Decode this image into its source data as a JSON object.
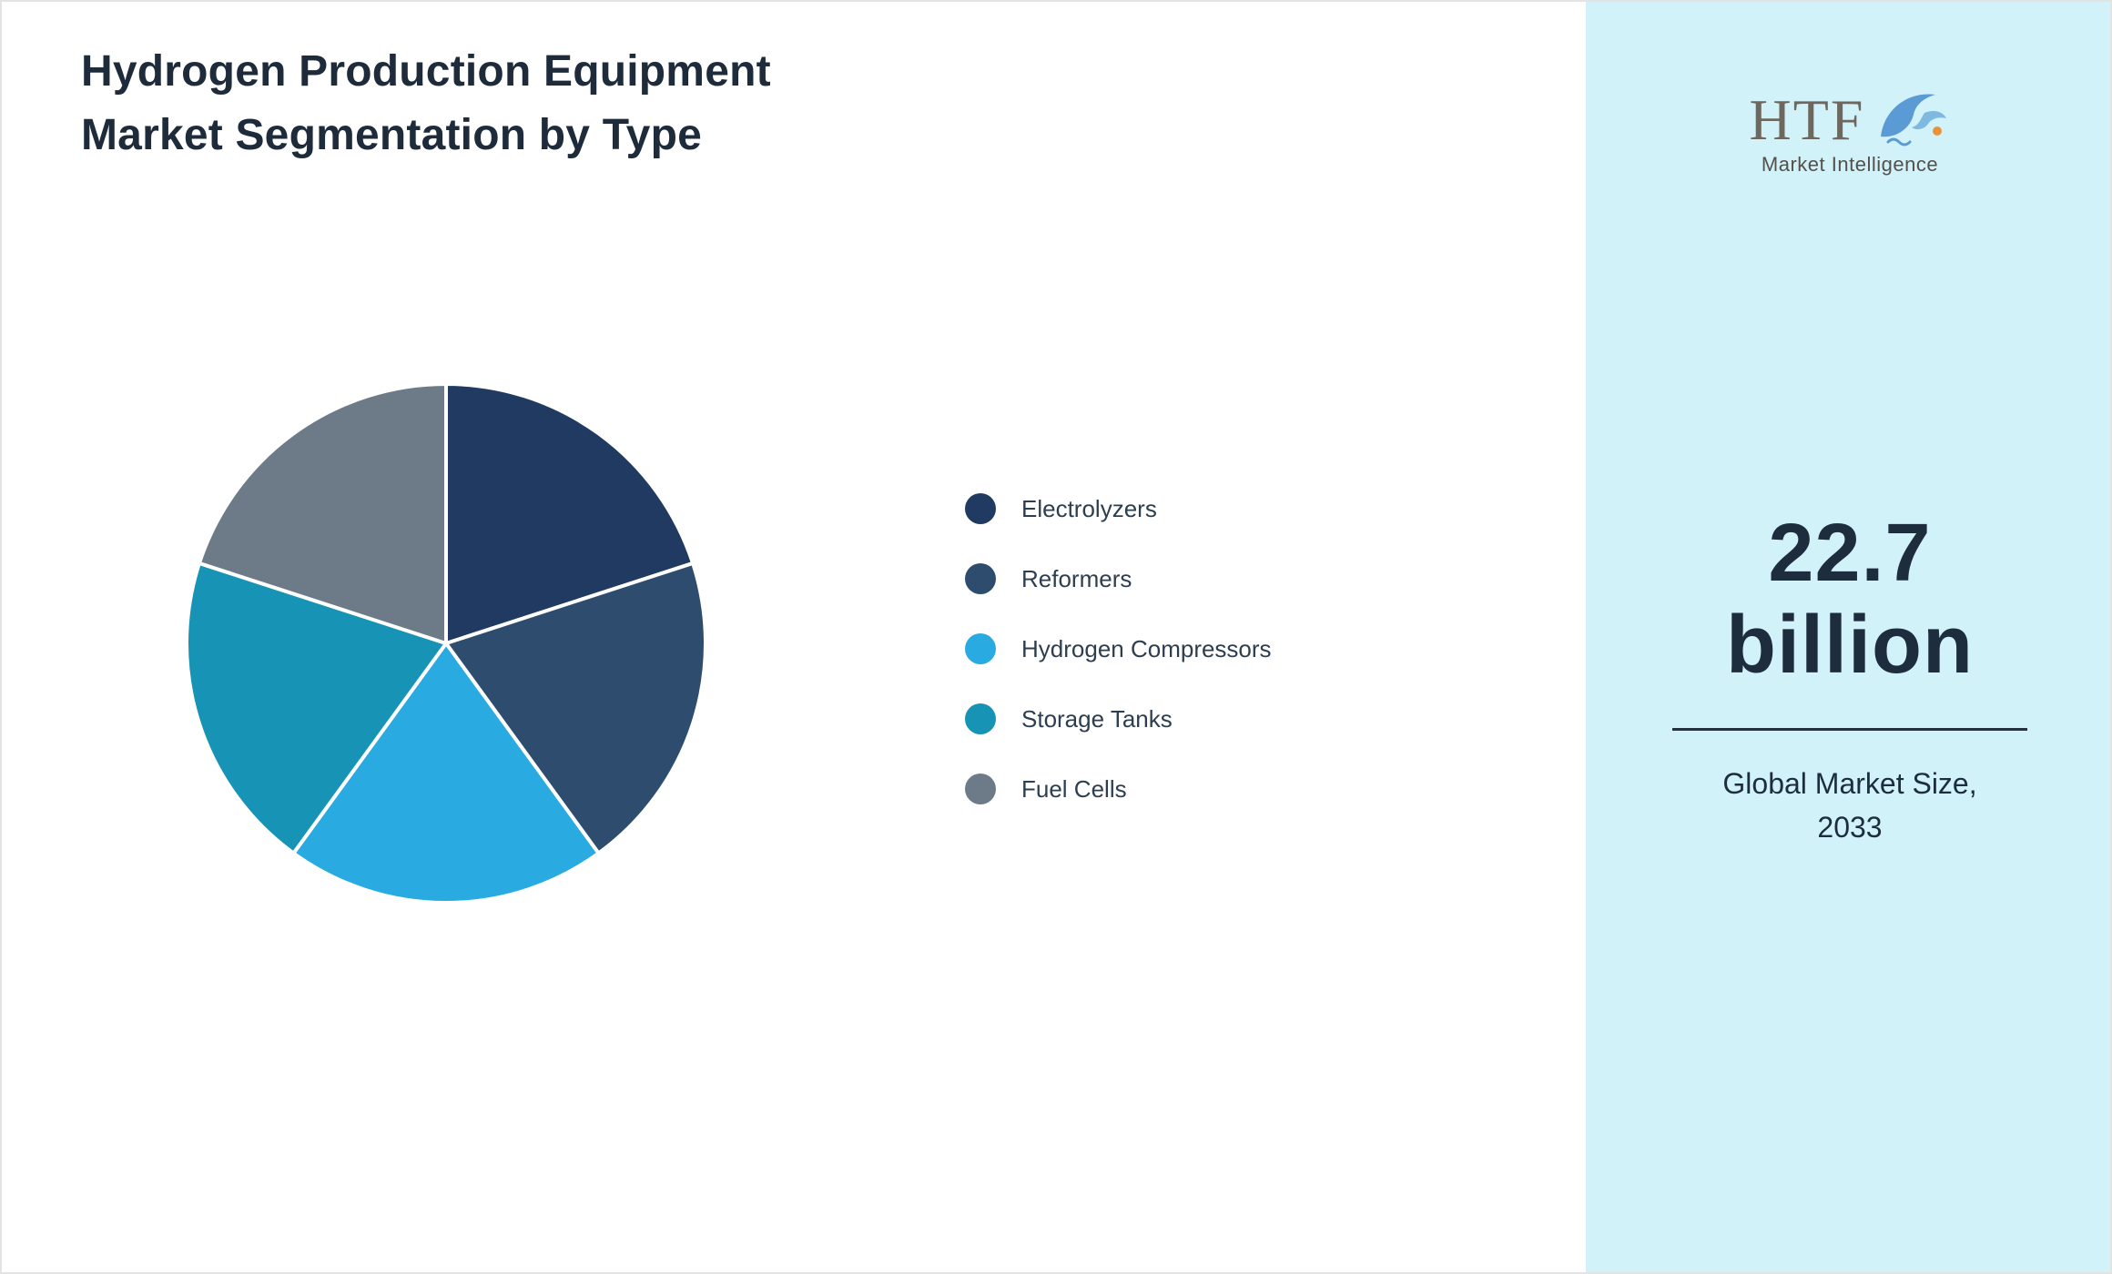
{
  "page": {
    "title_line1": "Hydrogen Production Equipment",
    "title_line2": "Market Segmentation by Type"
  },
  "chart_data": {
    "type": "pie",
    "title": "Hydrogen Production Equipment Market Segmentation by Type",
    "categories": [
      "Electrolyzers",
      "Reformers",
      "Hydrogen Compressors",
      "Storage Tanks",
      "Fuel Cells"
    ],
    "values": [
      20,
      20,
      20,
      20,
      20
    ],
    "unit": "percent-share",
    "colors": [
      "#203a61",
      "#2e4d6e",
      "#29abe2",
      "#1693b5",
      "#6d7b89"
    ],
    "start_angle_deg": 0,
    "direction": "clockwise",
    "slice_border_color": "#ffffff",
    "legend_position": "right"
  },
  "sidebar": {
    "background": "#d2f2fa",
    "logo": {
      "text": "HTF",
      "subtext": "Market Intelligence"
    },
    "market_size_value": "22.7",
    "market_size_unit": "billion",
    "caption_line1": "Global Market Size,",
    "caption_line2": "2033"
  }
}
